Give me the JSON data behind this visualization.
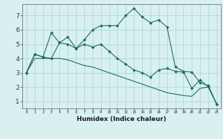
{
  "xlabel": "Humidex (Indice chaleur)",
  "bg_color": "#d8f0f0",
  "grid_color": "#aacfcf",
  "line_color": "#1a6b5a",
  "x_ticks": [
    0,
    1,
    2,
    3,
    4,
    5,
    6,
    7,
    8,
    9,
    10,
    11,
    12,
    13,
    14,
    15,
    16,
    17,
    18,
    19,
    20,
    21,
    22,
    23
  ],
  "y_ticks": [
    1,
    2,
    3,
    4,
    5,
    6,
    7
  ],
  "ylim": [
    0.5,
    7.8
  ],
  "xlim": [
    -0.5,
    23.5
  ],
  "line1_x": [
    0,
    1,
    2,
    3,
    4,
    5,
    6,
    7,
    8,
    9,
    10,
    11,
    12,
    13,
    14,
    15,
    16,
    17,
    18,
    19,
    20,
    21,
    22,
    23
  ],
  "line1_y": [
    3.0,
    4.3,
    4.1,
    5.8,
    5.1,
    5.0,
    4.7,
    5.3,
    6.0,
    6.3,
    6.3,
    6.3,
    7.0,
    7.5,
    6.9,
    6.5,
    6.7,
    6.2,
    3.4,
    3.1,
    3.05,
    2.3,
    2.1,
    0.8
  ],
  "line2_x": [
    0,
    1,
    2,
    3,
    4,
    5,
    6,
    7,
    8,
    9,
    10,
    11,
    12,
    13,
    14,
    15,
    16,
    17,
    18,
    19,
    20,
    21,
    22,
    23
  ],
  "line2_y": [
    3.0,
    4.3,
    4.1,
    4.0,
    5.1,
    5.5,
    4.7,
    5.0,
    4.8,
    5.0,
    4.5,
    4.0,
    3.6,
    3.2,
    3.0,
    2.7,
    3.2,
    3.3,
    3.1,
    3.05,
    1.9,
    2.5,
    2.0,
    0.8
  ],
  "line3_x": [
    0,
    1,
    2,
    3,
    4,
    5,
    6,
    7,
    8,
    9,
    10,
    11,
    12,
    13,
    14,
    15,
    16,
    17,
    18,
    19,
    20,
    21,
    22,
    23
  ],
  "line3_y": [
    3.0,
    4.0,
    4.0,
    4.0,
    4.0,
    3.9,
    3.7,
    3.5,
    3.4,
    3.2,
    3.0,
    2.8,
    2.6,
    2.4,
    2.2,
    2.0,
    1.8,
    1.6,
    1.5,
    1.4,
    1.35,
    1.9,
    2.0,
    0.8
  ]
}
